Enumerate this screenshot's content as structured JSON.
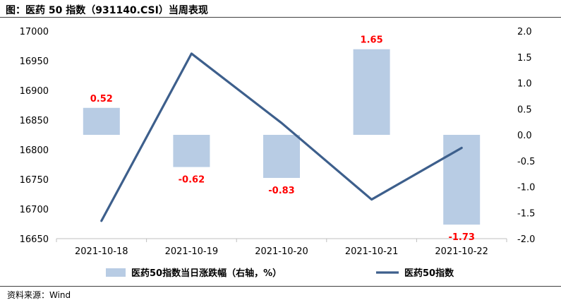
{
  "title": "图：医药 50 指数（931140.CSI）当周表现",
  "source": "资料来源：Wind",
  "chart_data": {
    "type": "bar+line",
    "categories": [
      "2021-10-18",
      "2021-10-19",
      "2021-10-20",
      "2021-10-21",
      "2021-10-22"
    ],
    "series": [
      {
        "name": "医药50指数当日涨跌幅（右轴，%）",
        "type": "bar",
        "axis": "right",
        "values": [
          0.52,
          -0.62,
          -0.83,
          1.65,
          -1.73
        ],
        "labels": [
          "0.52",
          "-0.62",
          "-0.83",
          "1.65",
          "-1.73"
        ],
        "color": "#b8cce4"
      },
      {
        "name": "医药50指数",
        "type": "line",
        "axis": "left",
        "values": [
          16680,
          16962,
          16845,
          16716,
          16803
        ],
        "color": "#3d5f8c"
      }
    ],
    "y_left": {
      "min": 16650,
      "max": 17000,
      "ticks": [
        "16650",
        "16700",
        "16750",
        "16800",
        "16850",
        "16900",
        "16950",
        "17000"
      ]
    },
    "y_right": {
      "min": -2.0,
      "max": 2.0,
      "ticks": [
        "-2.0",
        "-1.5",
        "-1.0",
        "-0.5",
        "0.0",
        "0.5",
        "1.0",
        "1.5",
        "2.0"
      ]
    },
    "label_color": "#ff0000",
    "grid": false,
    "legend": "bottom"
  }
}
